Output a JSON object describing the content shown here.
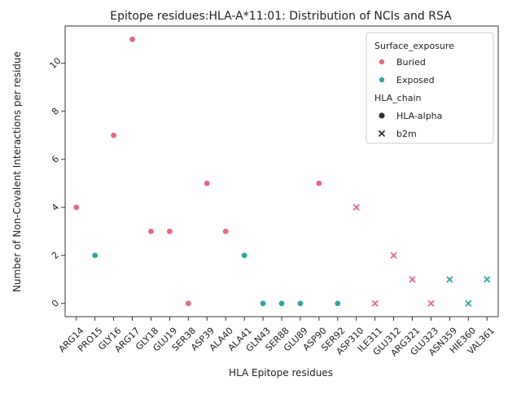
{
  "chart_data": {
    "type": "scatter",
    "title": "Epitope residues:HLA-A*11:01: Distribution of NCIs and RSA",
    "xlabel": "HLA Epitope residues",
    "ylabel": "Number of Non-Covalent Interactions per residue",
    "ylim": [
      -0.55,
      11.55
    ],
    "yticks": [
      0,
      2,
      4,
      6,
      8,
      10
    ],
    "grid": false,
    "legend_placement": "top-right",
    "colors": {
      "Buried": "#e8677a",
      "Exposed": "#2aa8a0"
    },
    "legend": {
      "hue_title": "Surface_exposure",
      "hue_items": [
        "Buried",
        "Exposed"
      ],
      "style_title": "HLA_chain",
      "style_items": [
        {
          "label": "HLA-alpha",
          "marker": "circle"
        },
        {
          "label": "b2m",
          "marker": "x"
        }
      ]
    },
    "points": [
      {
        "residue": "ARG14",
        "value": 4,
        "exposure": "Buried",
        "chain": "HLA-alpha"
      },
      {
        "residue": "PRO15",
        "value": 2,
        "exposure": "Exposed",
        "chain": "HLA-alpha"
      },
      {
        "residue": "GLY16",
        "value": 7,
        "exposure": "Buried",
        "chain": "HLA-alpha"
      },
      {
        "residue": "ARG17",
        "value": 11,
        "exposure": "Buried",
        "chain": "HLA-alpha"
      },
      {
        "residue": "GLY18",
        "value": 3,
        "exposure": "Buried",
        "chain": "HLA-alpha"
      },
      {
        "residue": "GLU19",
        "value": 3,
        "exposure": "Buried",
        "chain": "HLA-alpha"
      },
      {
        "residue": "SER38",
        "value": 0,
        "exposure": "Buried",
        "chain": "HLA-alpha"
      },
      {
        "residue": "ASP39",
        "value": 5,
        "exposure": "Buried",
        "chain": "HLA-alpha"
      },
      {
        "residue": "ALA40",
        "value": 3,
        "exposure": "Buried",
        "chain": "HLA-alpha"
      },
      {
        "residue": "ALA41",
        "value": 2,
        "exposure": "Exposed",
        "chain": "HLA-alpha"
      },
      {
        "residue": "GLN43",
        "value": 0,
        "exposure": "Exposed",
        "chain": "HLA-alpha"
      },
      {
        "residue": "SER88",
        "value": 0,
        "exposure": "Exposed",
        "chain": "HLA-alpha"
      },
      {
        "residue": "GLU89",
        "value": 0,
        "exposure": "Exposed",
        "chain": "HLA-alpha"
      },
      {
        "residue": "ASP90",
        "value": 5,
        "exposure": "Buried",
        "chain": "HLA-alpha"
      },
      {
        "residue": "SER92",
        "value": 0,
        "exposure": "Exposed",
        "chain": "HLA-alpha"
      },
      {
        "residue": "ASP310",
        "value": 4,
        "exposure": "Buried",
        "chain": "b2m"
      },
      {
        "residue": "ILE311",
        "value": 0,
        "exposure": "Buried",
        "chain": "b2m"
      },
      {
        "residue": "GLU312",
        "value": 2,
        "exposure": "Buried",
        "chain": "b2m"
      },
      {
        "residue": "ARG321",
        "value": 1,
        "exposure": "Buried",
        "chain": "b2m"
      },
      {
        "residue": "GLU323",
        "value": 0,
        "exposure": "Buried",
        "chain": "b2m"
      },
      {
        "residue": "ASN359",
        "value": 1,
        "exposure": "Exposed",
        "chain": "b2m"
      },
      {
        "residue": "HIE360",
        "value": 0,
        "exposure": "Exposed",
        "chain": "b2m"
      },
      {
        "residue": "VAL361",
        "value": 1,
        "exposure": "Exposed",
        "chain": "b2m"
      }
    ]
  }
}
